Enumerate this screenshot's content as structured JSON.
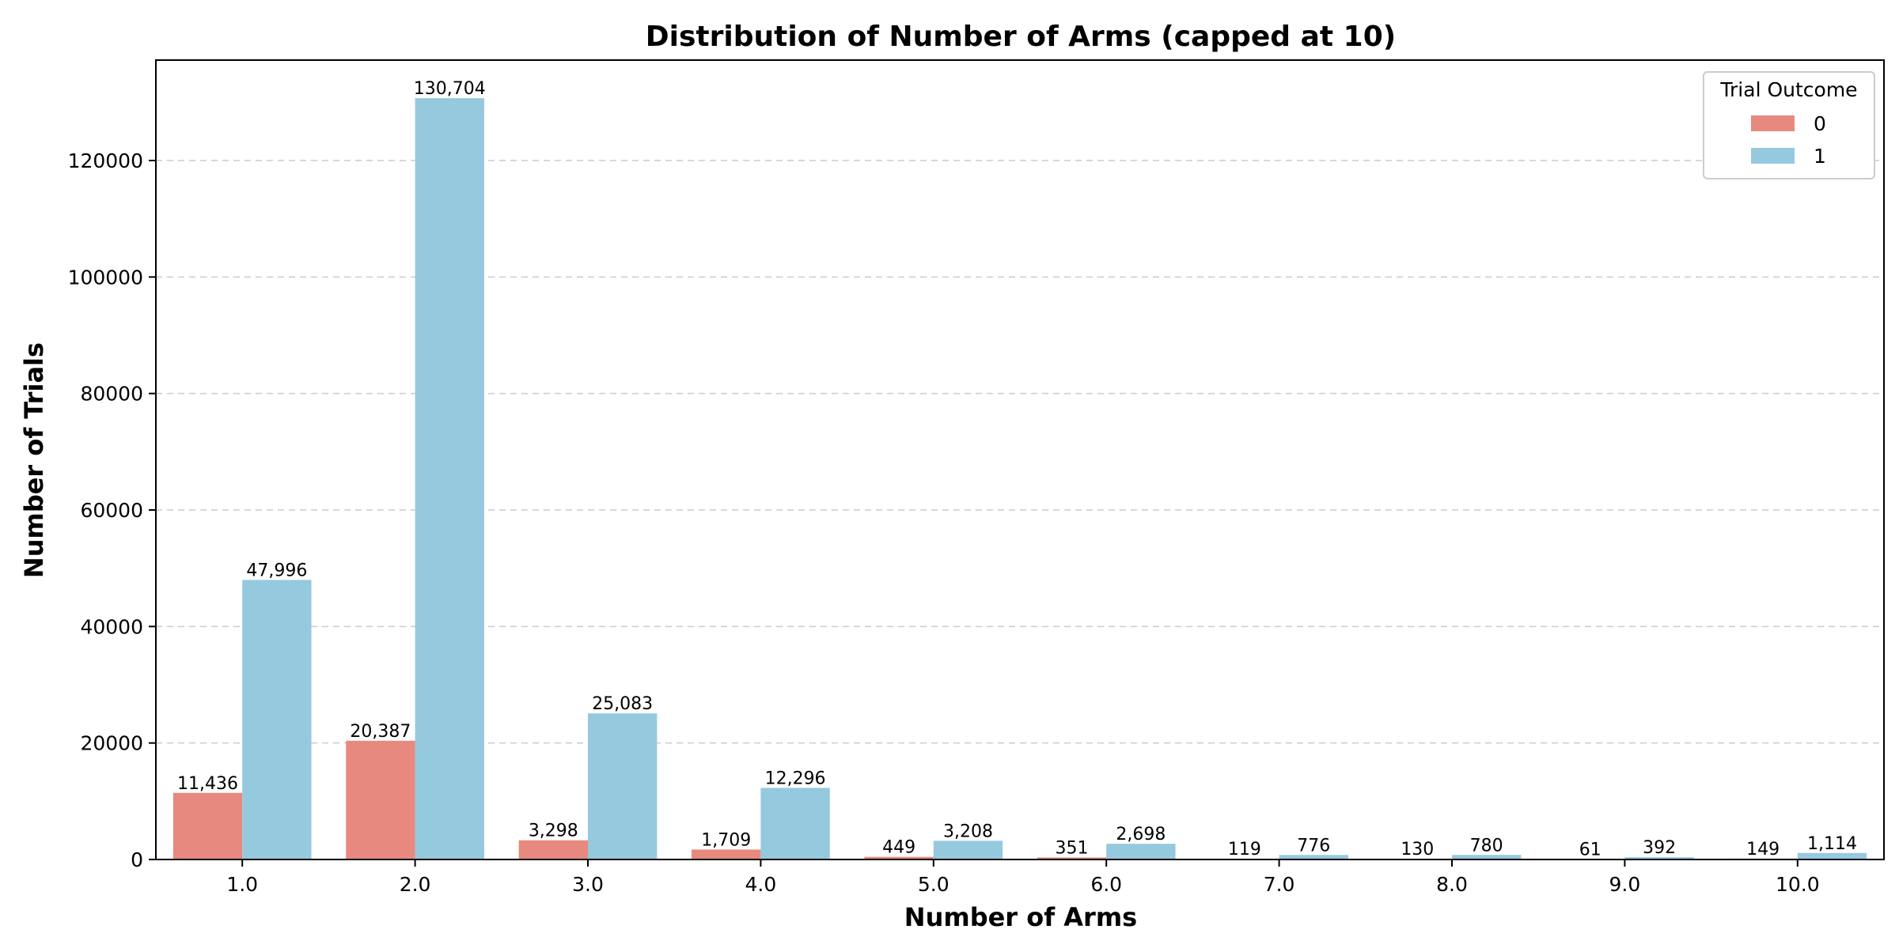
{
  "chart_data": {
    "type": "bar",
    "title": "Distribution of Number of Arms (capped at 10)",
    "xlabel": "Number of Arms",
    "ylabel": "Number of Trials",
    "categories": [
      "1.0",
      "2.0",
      "3.0",
      "4.0",
      "5.0",
      "6.0",
      "7.0",
      "8.0",
      "9.0",
      "10.0"
    ],
    "series": [
      {
        "name": "0",
        "color": "#E8897F",
        "values": [
          11436,
          20387,
          3298,
          1709,
          449,
          351,
          119,
          130,
          61,
          149
        ],
        "labels": [
          "11,436",
          "20,387",
          "3,298",
          "1,709",
          "449",
          "351",
          "119",
          "130",
          "61",
          "149"
        ]
      },
      {
        "name": "1",
        "color": "#95C9DE",
        "values": [
          47996,
          130704,
          25083,
          12296,
          3208,
          2698,
          776,
          780,
          392,
          1114
        ],
        "labels": [
          "47,996",
          "130,704",
          "25,083",
          "12,296",
          "3,208",
          "2,698",
          "776",
          "780",
          "392",
          "1,114"
        ]
      }
    ],
    "ylim": [
      0,
      137240
    ],
    "yticks": [
      0,
      20000,
      40000,
      60000,
      80000,
      100000,
      120000
    ],
    "ytick_labels": [
      "0",
      "20000",
      "40000",
      "60000",
      "80000",
      "100000",
      "120000"
    ],
    "grid": "y-dashed",
    "legend": {
      "title": "Trial Outcome",
      "placement": "top-right"
    }
  }
}
